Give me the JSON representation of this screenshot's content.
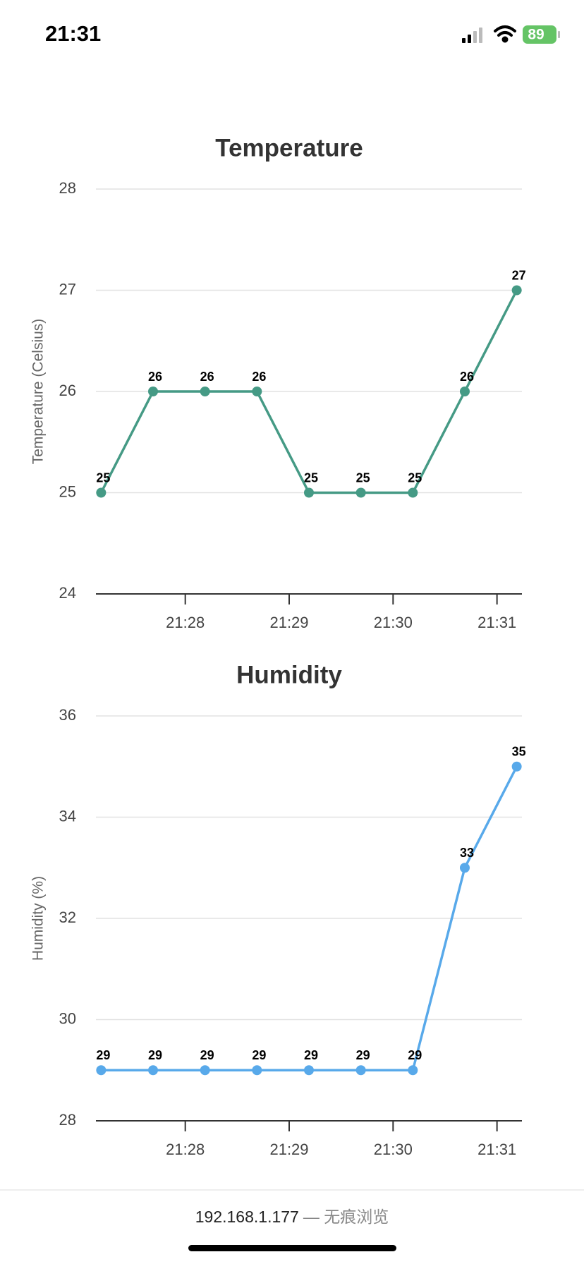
{
  "status_bar": {
    "time": "21:31",
    "battery": "89"
  },
  "chart_data": [
    {
      "type": "line",
      "title": "Temperature",
      "y_label": "Temperature (Celsius)",
      "color": "#459a85",
      "x": [
        1287.19,
        1287.69,
        1288.19,
        1288.69,
        1289.19,
        1289.69,
        1290.19,
        1290.69,
        1291.19
      ],
      "values": [
        25,
        26,
        26,
        26,
        25,
        25,
        25,
        26,
        27
      ],
      "xlim": [
        1287.14,
        1291.24
      ],
      "xticks": [
        {
          "value": 1288,
          "label": "21:28"
        },
        {
          "value": 1289,
          "label": "21:29"
        },
        {
          "value": 1290,
          "label": "21:30"
        },
        {
          "value": 1291,
          "label": "21:31"
        }
      ],
      "ylim": [
        24,
        28
      ],
      "yticks": [
        24,
        25,
        26,
        27,
        28
      ],
      "grid": true
    },
    {
      "type": "line",
      "title": "Humidity",
      "y_label": "Humidity (%)",
      "color": "#58a9ea",
      "x": [
        1287.19,
        1287.69,
        1288.19,
        1288.69,
        1289.19,
        1289.69,
        1290.19,
        1290.69,
        1291.19
      ],
      "values": [
        29,
        29,
        29,
        29,
        29,
        29,
        29,
        33,
        35
      ],
      "xlim": [
        1287.14,
        1291.24
      ],
      "xticks": [
        {
          "value": 1288,
          "label": "21:28"
        },
        {
          "value": 1289,
          "label": "21:29"
        },
        {
          "value": 1290,
          "label": "21:30"
        },
        {
          "value": 1291,
          "label": "21:31"
        }
      ],
      "ylim": [
        28,
        36
      ],
      "yticks": [
        28,
        30,
        32,
        34,
        36
      ],
      "grid": true
    }
  ],
  "footer": {
    "address": "192.168.1.177",
    "mode": "— 无痕浏览"
  }
}
